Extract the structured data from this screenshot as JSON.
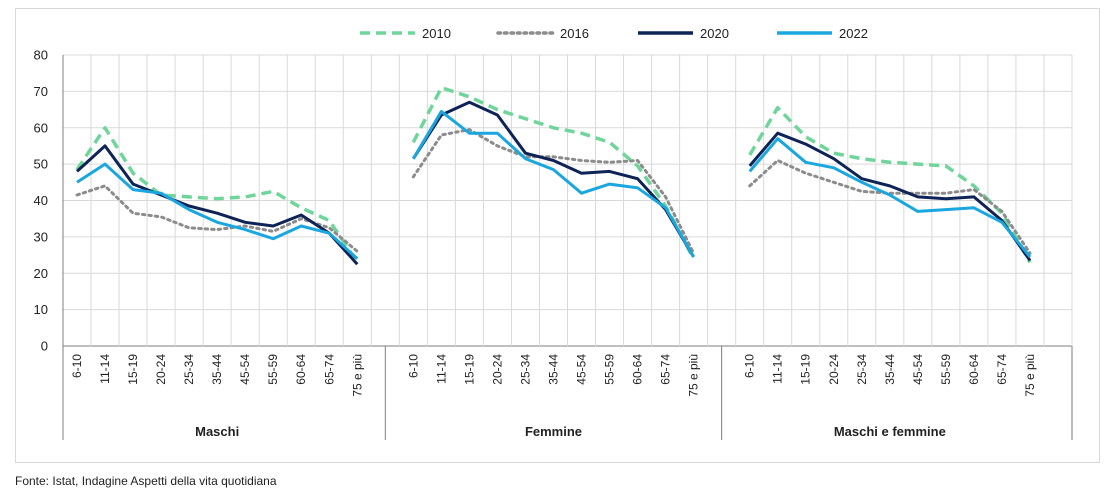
{
  "source": "Fonte: Istat, Indagine Aspetti della vita quotidiana",
  "chart_data": {
    "type": "line",
    "title": "",
    "xlabel": "",
    "ylabel": "",
    "ylim": [
      0,
      80
    ],
    "yticks": [
      0,
      10,
      20,
      30,
      40,
      50,
      60,
      70,
      80
    ],
    "grid": true,
    "legend_position": "top",
    "categories": [
      "6-10",
      "11-14",
      "15-19",
      "20-24",
      "25-34",
      "35-44",
      "45-54",
      "55-59",
      "60-64",
      "65-74",
      "75 e più"
    ],
    "groups": [
      "Maschi",
      "Femmine",
      "Maschi e femmine"
    ],
    "series": [
      {
        "name": "2010",
        "color": "#6fd59a",
        "style": "dashed",
        "values": [
          [
            48.5,
            60.0,
            47.5,
            41.5,
            41.0,
            40.5,
            41.0,
            42.5,
            38.0,
            34.5,
            23.0
          ],
          [
            56.0,
            71.0,
            68.5,
            65.0,
            62.5,
            60.0,
            58.5,
            56.0,
            49.5,
            38.5,
            24.0
          ],
          [
            52.5,
            65.5,
            57.5,
            53.0,
            51.5,
            50.5,
            50.0,
            49.5,
            44.0,
            36.5,
            23.0
          ]
        ]
      },
      {
        "name": "2016",
        "color": "#8c8c8c",
        "style": "dotted",
        "values": [
          [
            41.5,
            44.0,
            36.5,
            35.5,
            32.5,
            32.0,
            33.0,
            31.5,
            35.0,
            32.5,
            26.0
          ],
          [
            46.5,
            58.0,
            59.5,
            55.0,
            52.0,
            52.0,
            51.0,
            50.5,
            51.0,
            41.0,
            25.5
          ],
          [
            44.0,
            51.0,
            47.5,
            45.0,
            42.5,
            42.0,
            42.0,
            42.0,
            43.0,
            37.0,
            25.5
          ]
        ]
      },
      {
        "name": "2020",
        "color": "#0e2356",
        "style": "solid",
        "values": [
          [
            48.0,
            55.0,
            44.5,
            41.5,
            38.5,
            36.5,
            34.0,
            33.0,
            36.0,
            31.0,
            22.5
          ],
          [
            51.5,
            63.5,
            67.0,
            63.5,
            53.0,
            51.0,
            47.5,
            48.0,
            46.0,
            37.5,
            24.5
          ],
          [
            49.5,
            58.5,
            55.5,
            51.5,
            46.0,
            44.0,
            41.0,
            40.5,
            41.0,
            34.5,
            23.5
          ]
        ]
      },
      {
        "name": "2022",
        "color": "#1aa6df",
        "style": "solid",
        "values": [
          [
            45.0,
            50.0,
            43.0,
            42.0,
            37.5,
            34.0,
            32.0,
            29.5,
            33.0,
            31.0,
            24.0
          ],
          [
            51.5,
            64.5,
            58.5,
            58.5,
            51.5,
            48.5,
            42.0,
            44.5,
            43.5,
            38.0,
            24.5
          ],
          [
            48.0,
            57.0,
            50.5,
            49.0,
            45.0,
            41.5,
            37.0,
            37.5,
            38.0,
            34.0,
            24.5
          ]
        ]
      }
    ]
  }
}
